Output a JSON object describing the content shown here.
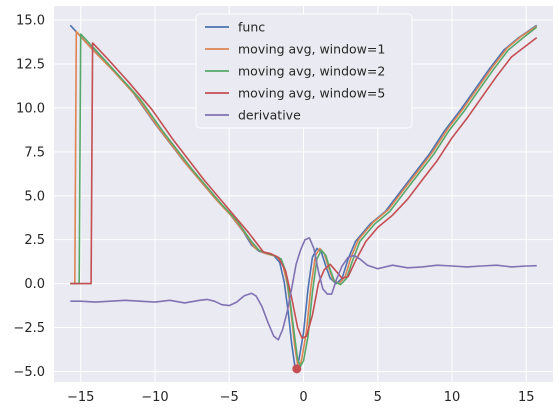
{
  "chart_data": {
    "type": "line",
    "title": "",
    "xlabel": "",
    "ylabel": "",
    "xlim": [
      -16.8,
      16.8
    ],
    "ylim": [
      -5.6,
      15.8
    ],
    "xticks": [
      -15,
      -10,
      -5,
      0,
      5,
      10,
      15
    ],
    "xtick_labels": [
      "−15",
      "−10",
      "−5",
      "0",
      "5",
      "10",
      "15"
    ],
    "yticks": [
      -5.0,
      -2.5,
      0.0,
      2.5,
      5.0,
      7.5,
      10.0,
      12.5,
      15.0
    ],
    "ytick_labels": [
      "−5.0",
      "−2.5",
      "0.0",
      "2.5",
      "5.0",
      "7.5",
      "10.0",
      "12.5",
      "15.0"
    ],
    "grid": true,
    "legend_position": "top-center",
    "background_color": "#eaeaf2",
    "series": [
      {
        "name": "func",
        "color": "#4c72b0",
        "points": [
          [
            -15.7,
            14.7
          ],
          [
            -14.5,
            13.6
          ],
          [
            -13,
            12.3
          ],
          [
            -11.5,
            10.9
          ],
          [
            -10,
            9.1
          ],
          [
            -8,
            6.9
          ],
          [
            -6,
            4.9
          ],
          [
            -5,
            4.0
          ],
          [
            -4,
            2.9
          ],
          [
            -3.5,
            2.2
          ],
          [
            -3,
            1.85
          ],
          [
            -2.5,
            1.7
          ],
          [
            -2,
            1.6
          ],
          [
            -1.6,
            1.2
          ],
          [
            -1.3,
            0.1
          ],
          [
            -1.0,
            -1.8
          ],
          [
            -0.8,
            -3.4
          ],
          [
            -0.6,
            -4.6
          ],
          [
            -0.45,
            -4.85
          ],
          [
            -0.3,
            -4.3
          ],
          [
            0,
            -2.8
          ],
          [
            0.3,
            -0.3
          ],
          [
            0.6,
            1.5
          ],
          [
            0.9,
            2.0
          ],
          [
            1.2,
            1.8
          ],
          [
            1.5,
            1.0
          ],
          [
            1.8,
            0.3
          ],
          [
            2.2,
            0.0
          ],
          [
            2.6,
            0.3
          ],
          [
            3.0,
            1.4
          ],
          [
            3.5,
            2.4
          ],
          [
            4.5,
            3.4
          ],
          [
            5.5,
            4.1
          ],
          [
            6.5,
            5.2
          ],
          [
            7.5,
            6.3
          ],
          [
            8.5,
            7.4
          ],
          [
            9.5,
            8.7
          ],
          [
            10.5,
            9.8
          ],
          [
            11.5,
            11.0
          ],
          [
            12.5,
            12.2
          ],
          [
            13.5,
            13.3
          ],
          [
            14.5,
            14.0
          ],
          [
            15.7,
            14.7
          ]
        ]
      },
      {
        "name": "moving avg, window=1",
        "color": "#dd8452",
        "points": [
          [
            -15.7,
            0.0
          ],
          [
            -15.4,
            0.0
          ],
          [
            -15.3,
            14.35
          ],
          [
            -14.3,
            13.4
          ],
          [
            -12.8,
            12.1
          ],
          [
            -11.3,
            10.7
          ],
          [
            -9.8,
            8.9
          ],
          [
            -7.8,
            6.7
          ],
          [
            -5.8,
            4.7
          ],
          [
            -4.8,
            3.8
          ],
          [
            -3.8,
            2.7
          ],
          [
            -3.3,
            2.05
          ],
          [
            -2.8,
            1.8
          ],
          [
            -2.3,
            1.65
          ],
          [
            -1.8,
            1.55
          ],
          [
            -1.4,
            1.1
          ],
          [
            -1.1,
            0.0
          ],
          [
            -0.8,
            -1.9
          ],
          [
            -0.6,
            -3.5
          ],
          [
            -0.4,
            -4.6
          ],
          [
            -0.25,
            -4.8
          ],
          [
            -0.1,
            -4.2
          ],
          [
            0.2,
            -2.7
          ],
          [
            0.5,
            -0.2
          ],
          [
            0.8,
            1.6
          ],
          [
            1.1,
            2.0
          ],
          [
            1.4,
            1.7
          ],
          [
            1.7,
            0.9
          ],
          [
            2.0,
            0.2
          ],
          [
            2.4,
            0.0
          ],
          [
            2.8,
            0.4
          ],
          [
            3.2,
            1.5
          ],
          [
            3.7,
            2.5
          ],
          [
            4.7,
            3.5
          ],
          [
            5.7,
            4.2
          ],
          [
            6.7,
            5.3
          ],
          [
            7.7,
            6.4
          ],
          [
            8.7,
            7.5
          ],
          [
            9.7,
            8.8
          ],
          [
            10.7,
            9.9
          ],
          [
            11.7,
            11.1
          ],
          [
            12.7,
            12.3
          ],
          [
            13.7,
            13.4
          ],
          [
            14.7,
            14.1
          ],
          [
            15.7,
            14.65
          ]
        ]
      },
      {
        "name": "moving avg, window=2",
        "color": "#55a868",
        "points": [
          [
            -15.7,
            0.0
          ],
          [
            -15.1,
            0.0
          ],
          [
            -15.0,
            14.2
          ],
          [
            -14.0,
            13.3
          ],
          [
            -12.5,
            11.9
          ],
          [
            -11.0,
            10.5
          ],
          [
            -9.5,
            8.7
          ],
          [
            -7.5,
            6.5
          ],
          [
            -5.5,
            4.5
          ],
          [
            -4.5,
            3.6
          ],
          [
            -3.5,
            2.4
          ],
          [
            -3.0,
            1.9
          ],
          [
            -2.5,
            1.75
          ],
          [
            -2.0,
            1.6
          ],
          [
            -1.5,
            1.4
          ],
          [
            -1.2,
            0.7
          ],
          [
            -0.9,
            -1.0
          ],
          [
            -0.6,
            -3.0
          ],
          [
            -0.4,
            -4.3
          ],
          [
            -0.2,
            -4.7
          ],
          [
            0.0,
            -4.4
          ],
          [
            0.3,
            -3.0
          ],
          [
            0.6,
            -0.5
          ],
          [
            0.9,
            1.4
          ],
          [
            1.2,
            1.9
          ],
          [
            1.5,
            1.6
          ],
          [
            1.8,
            0.8
          ],
          [
            2.1,
            0.1
          ],
          [
            2.5,
            -0.05
          ],
          [
            2.9,
            0.3
          ],
          [
            3.3,
            1.3
          ],
          [
            3.8,
            2.4
          ],
          [
            4.8,
            3.4
          ],
          [
            5.8,
            4.1
          ],
          [
            6.8,
            5.2
          ],
          [
            7.8,
            6.3
          ],
          [
            8.8,
            7.4
          ],
          [
            9.8,
            8.7
          ],
          [
            10.8,
            9.8
          ],
          [
            11.8,
            11.0
          ],
          [
            12.8,
            12.2
          ],
          [
            13.8,
            13.3
          ],
          [
            14.8,
            14.0
          ],
          [
            15.7,
            14.6
          ]
        ]
      },
      {
        "name": "moving avg, window=5",
        "color": "#c44e52",
        "points": [
          [
            -15.7,
            0.0
          ],
          [
            -14.3,
            0.0
          ],
          [
            -14.2,
            13.7
          ],
          [
            -13.2,
            12.8
          ],
          [
            -11.7,
            11.4
          ],
          [
            -10.2,
            9.9
          ],
          [
            -8.7,
            8.1
          ],
          [
            -6.7,
            5.9
          ],
          [
            -4.7,
            3.9
          ],
          [
            -3.7,
            2.9
          ],
          [
            -2.7,
            1.8
          ],
          [
            -2.2,
            1.7
          ],
          [
            -1.7,
            1.5
          ],
          [
            -1.2,
            0.7
          ],
          [
            -0.8,
            -0.8
          ],
          [
            -0.4,
            -2.5
          ],
          [
            -0.1,
            -3.1
          ],
          [
            0.2,
            -3.0
          ],
          [
            0.6,
            -1.8
          ],
          [
            1.0,
            0.0
          ],
          [
            1.4,
            0.8
          ],
          [
            1.8,
            1.1
          ],
          [
            2.2,
            0.7
          ],
          [
            2.6,
            0.3
          ],
          [
            3.0,
            0.4
          ],
          [
            3.5,
            1.3
          ],
          [
            4.2,
            2.4
          ],
          [
            5.0,
            3.2
          ],
          [
            6.0,
            3.9
          ],
          [
            7.0,
            4.8
          ],
          [
            8.0,
            5.9
          ],
          [
            9.0,
            7.0
          ],
          [
            10.0,
            8.3
          ],
          [
            11.0,
            9.4
          ],
          [
            12.0,
            10.6
          ],
          [
            13.0,
            11.8
          ],
          [
            14.0,
            12.9
          ],
          [
            15.7,
            14.0
          ]
        ]
      },
      {
        "name": "derivative",
        "color": "#8172b3",
        "points": [
          [
            -15.7,
            -1.0
          ],
          [
            -15,
            -1.0
          ],
          [
            -14,
            -1.05
          ],
          [
            -13,
            -1.0
          ],
          [
            -12,
            -0.95
          ],
          [
            -11,
            -1.0
          ],
          [
            -10,
            -1.05
          ],
          [
            -9,
            -0.95
          ],
          [
            -8,
            -1.1
          ],
          [
            -7,
            -0.95
          ],
          [
            -6.5,
            -0.9
          ],
          [
            -6,
            -1.0
          ],
          [
            -5.5,
            -1.2
          ],
          [
            -5,
            -1.25
          ],
          [
            -4.5,
            -1.05
          ],
          [
            -4,
            -0.7
          ],
          [
            -3.5,
            -0.55
          ],
          [
            -3.2,
            -0.7
          ],
          [
            -2.8,
            -1.3
          ],
          [
            -2.4,
            -2.2
          ],
          [
            -2.0,
            -3.0
          ],
          [
            -1.7,
            -3.2
          ],
          [
            -1.4,
            -2.6
          ],
          [
            -1.1,
            -1.6
          ],
          [
            -0.8,
            -0.3
          ],
          [
            -0.5,
            1.1
          ],
          [
            -0.2,
            1.9
          ],
          [
            0.1,
            2.5
          ],
          [
            0.4,
            2.6
          ],
          [
            0.7,
            2.0
          ],
          [
            1.0,
            0.7
          ],
          [
            1.3,
            -0.3
          ],
          [
            1.6,
            -0.6
          ],
          [
            1.9,
            -0.6
          ],
          [
            2.2,
            0.2
          ],
          [
            2.6,
            1.0
          ],
          [
            3.0,
            1.5
          ],
          [
            3.4,
            1.6
          ],
          [
            3.8,
            1.4
          ],
          [
            4.3,
            1.05
          ],
          [
            5,
            0.85
          ],
          [
            6,
            1.05
          ],
          [
            7,
            0.9
          ],
          [
            8,
            0.95
          ],
          [
            9,
            1.05
          ],
          [
            10,
            1.0
          ],
          [
            11,
            0.95
          ],
          [
            12,
            1.0
          ],
          [
            13,
            1.05
          ],
          [
            14,
            0.95
          ],
          [
            15,
            1.0
          ],
          [
            15.7,
            1.02
          ]
        ]
      }
    ],
    "markers": [
      {
        "x": -0.45,
        "y": -4.85,
        "color": "#c44e52"
      }
    ]
  }
}
